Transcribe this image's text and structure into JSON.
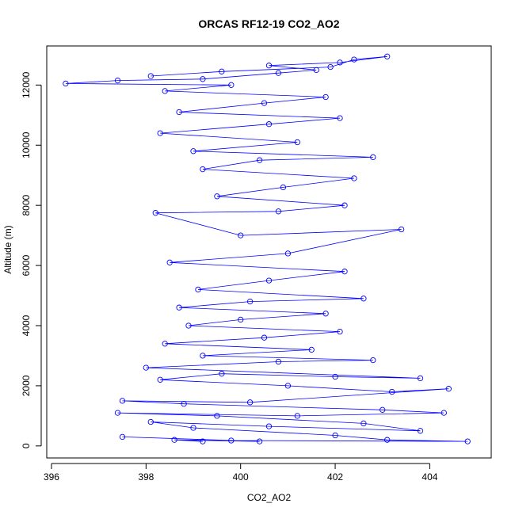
{
  "chart_data": {
    "type": "scatter",
    "title": "ORCAS RF12-19 CO2_AO2",
    "xlabel": "CO2_AO2",
    "ylabel": "Altitude (m)",
    "xlim": [
      395.9,
      405.3
    ],
    "ylim": [
      -400,
      13300
    ],
    "xticks": [
      396,
      398,
      400,
      402,
      404
    ],
    "yticks": [
      0,
      2000,
      4000,
      6000,
      8000,
      10000,
      12000
    ],
    "grid": false,
    "legend": "none",
    "series": [
      {
        "marker": "open-circle",
        "connected": true,
        "color": "#0000ff",
        "points": [
          [
            399.2,
            150
          ],
          [
            398.6,
            200
          ],
          [
            400.4,
            150
          ],
          [
            397.5,
            300
          ],
          [
            399.8,
            180
          ],
          [
            404.8,
            150
          ],
          [
            403.1,
            200
          ],
          [
            402.0,
            350
          ],
          [
            399.0,
            600
          ],
          [
            398.1,
            800
          ],
          [
            400.6,
            650
          ],
          [
            403.8,
            500
          ],
          [
            402.6,
            750
          ],
          [
            399.5,
            1000
          ],
          [
            397.4,
            1100
          ],
          [
            401.2,
            1000
          ],
          [
            404.3,
            1100
          ],
          [
            403.0,
            1200
          ],
          [
            398.8,
            1400
          ],
          [
            397.5,
            1500
          ],
          [
            400.2,
            1450
          ],
          [
            404.4,
            1900
          ],
          [
            403.2,
            1800
          ],
          [
            401.0,
            2000
          ],
          [
            398.3,
            2200
          ],
          [
            399.6,
            2400
          ],
          [
            402.0,
            2300
          ],
          [
            403.8,
            2250
          ],
          [
            398.0,
            2600
          ],
          [
            400.8,
            2800
          ],
          [
            402.8,
            2850
          ],
          [
            399.2,
            3000
          ],
          [
            401.5,
            3200
          ],
          [
            398.4,
            3400
          ],
          [
            400.5,
            3600
          ],
          [
            402.1,
            3800
          ],
          [
            398.9,
            4000
          ],
          [
            400.0,
            4200
          ],
          [
            401.8,
            4400
          ],
          [
            398.7,
            4600
          ],
          [
            400.2,
            4800
          ],
          [
            402.6,
            4900
          ],
          [
            399.1,
            5200
          ],
          [
            400.6,
            5500
          ],
          [
            402.2,
            5800
          ],
          [
            398.5,
            6100
          ],
          [
            401.0,
            6400
          ],
          [
            403.4,
            7200
          ],
          [
            400.0,
            7000
          ],
          [
            398.2,
            7750
          ],
          [
            400.8,
            7800
          ],
          [
            402.2,
            8000
          ],
          [
            399.5,
            8300
          ],
          [
            400.9,
            8600
          ],
          [
            402.4,
            8900
          ],
          [
            399.2,
            9200
          ],
          [
            400.4,
            9500
          ],
          [
            402.8,
            9600
          ],
          [
            399.0,
            9800
          ],
          [
            401.2,
            10100
          ],
          [
            398.3,
            10400
          ],
          [
            400.6,
            10700
          ],
          [
            402.1,
            10900
          ],
          [
            398.7,
            11100
          ],
          [
            400.5,
            11400
          ],
          [
            401.8,
            11600
          ],
          [
            398.4,
            11800
          ],
          [
            399.8,
            12000
          ],
          [
            396.3,
            12050
          ],
          [
            397.4,
            12150
          ],
          [
            399.2,
            12200
          ],
          [
            400.8,
            12400
          ],
          [
            401.6,
            12500
          ],
          [
            400.6,
            12650
          ],
          [
            402.1,
            12750
          ],
          [
            403.1,
            12950
          ],
          [
            402.4,
            12850
          ],
          [
            401.9,
            12600
          ],
          [
            399.6,
            12450
          ],
          [
            398.1,
            12300
          ]
        ]
      }
    ]
  }
}
